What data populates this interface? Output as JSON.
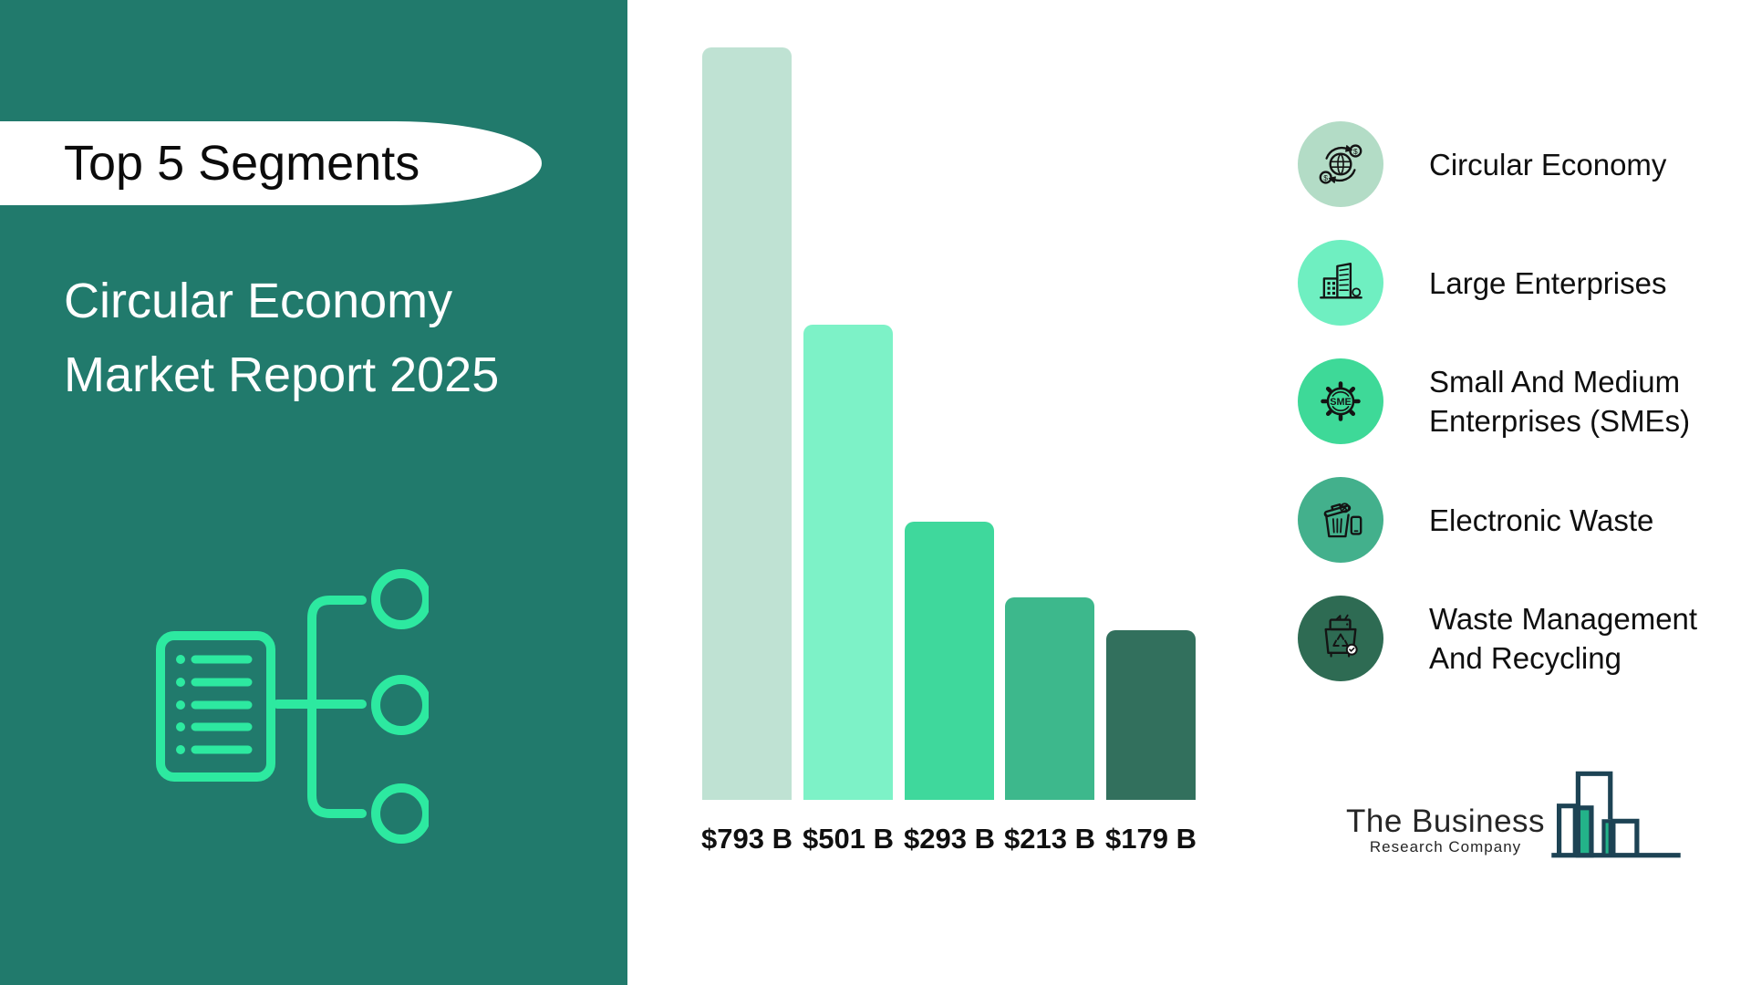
{
  "sidebar": {
    "badge": "Top 5 Segments",
    "title_line1": "Circular Economy",
    "title_line2": "Market Report 2025",
    "background_color": "#217a6c",
    "accent_color": "#2de9a0"
  },
  "chart_data": {
    "type": "bar",
    "title": "Top 5 Segments — Circular Economy Market Report 2025",
    "unit": "USD billions",
    "categories": [
      "Circular Economy",
      "Large Enterprises",
      "Small And Medium Enterprises (SMEs)",
      "Electronic Waste",
      "Waste Management And Recycling"
    ],
    "values": [
      793,
      501,
      293,
      213,
      179
    ],
    "value_labels": [
      "$793 B",
      "$501 B",
      "$293 B",
      "$213 B",
      "$179 B"
    ],
    "bar_colors": [
      "#bfe2d3",
      "#7df2c7",
      "#3fd89c",
      "#3db88c",
      "#32705d"
    ],
    "ymax": 793,
    "grid": false,
    "legend_position": "right"
  },
  "legend": {
    "items": [
      {
        "icon": "circular-economy-icon",
        "label": "Circular Economy",
        "circle_color": "#b3dcc6"
      },
      {
        "icon": "large-enterprises-icon",
        "label": "Large Enterprises",
        "circle_color": "#6fefc1"
      },
      {
        "icon": "sme-gear-icon",
        "label": "Small And Medium\nEnterprises (SMEs)",
        "circle_color": "#3ed998"
      },
      {
        "icon": "electronic-waste-icon",
        "label": "Electronic Waste",
        "circle_color": "#43b08c"
      },
      {
        "icon": "waste-recycling-icon",
        "label": "Waste Management\nAnd Recycling",
        "circle_color": "#2e6b53"
      }
    ]
  },
  "footer": {
    "brand_line1": "The Business",
    "brand_line2": "Research Company",
    "logo_outline_color": "#1d4354",
    "logo_fill_color": "#23b389"
  }
}
